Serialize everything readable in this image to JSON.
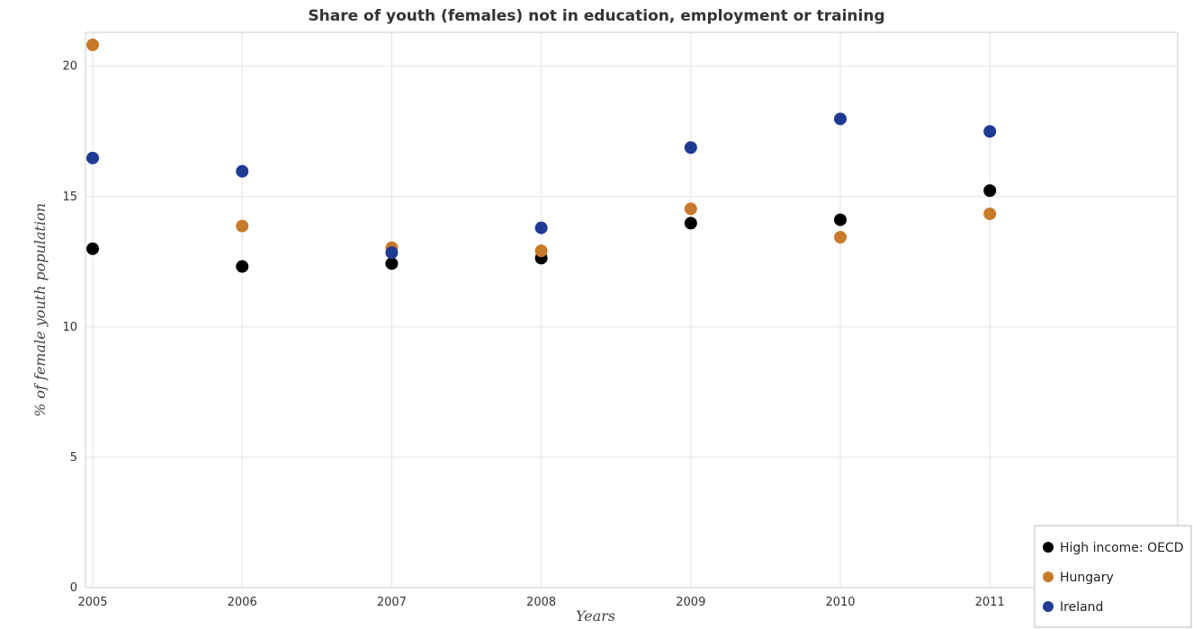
{
  "chart_data": {
    "type": "scatter",
    "title": "Share of youth (females) not in education, employment or training",
    "xlabel": "Years",
    "ylabel": "% of female youth population",
    "categories": [
      "2005",
      "2006",
      "2007",
      "2008",
      "2009",
      "2010",
      "2011"
    ],
    "yticks": [
      "0",
      "5",
      "10",
      "15",
      "20"
    ],
    "ylim": [
      0,
      21.3
    ],
    "grid": true,
    "legend_position": "bottom-right",
    "series": [
      {
        "name": "High income: OECD",
        "color": "#000000",
        "values": [
          13.0,
          12.32,
          12.43,
          12.64,
          13.98,
          14.11,
          15.23
        ]
      },
      {
        "name": "Hungary",
        "color": "#c87a2b",
        "values": [
          20.82,
          13.87,
          13.04,
          12.92,
          14.53,
          13.44,
          14.34
        ]
      },
      {
        "name": "Ireland",
        "color": "#1f3a93",
        "values": [
          16.48,
          15.97,
          12.85,
          13.8,
          16.88,
          17.98,
          17.5
        ]
      }
    ]
  }
}
